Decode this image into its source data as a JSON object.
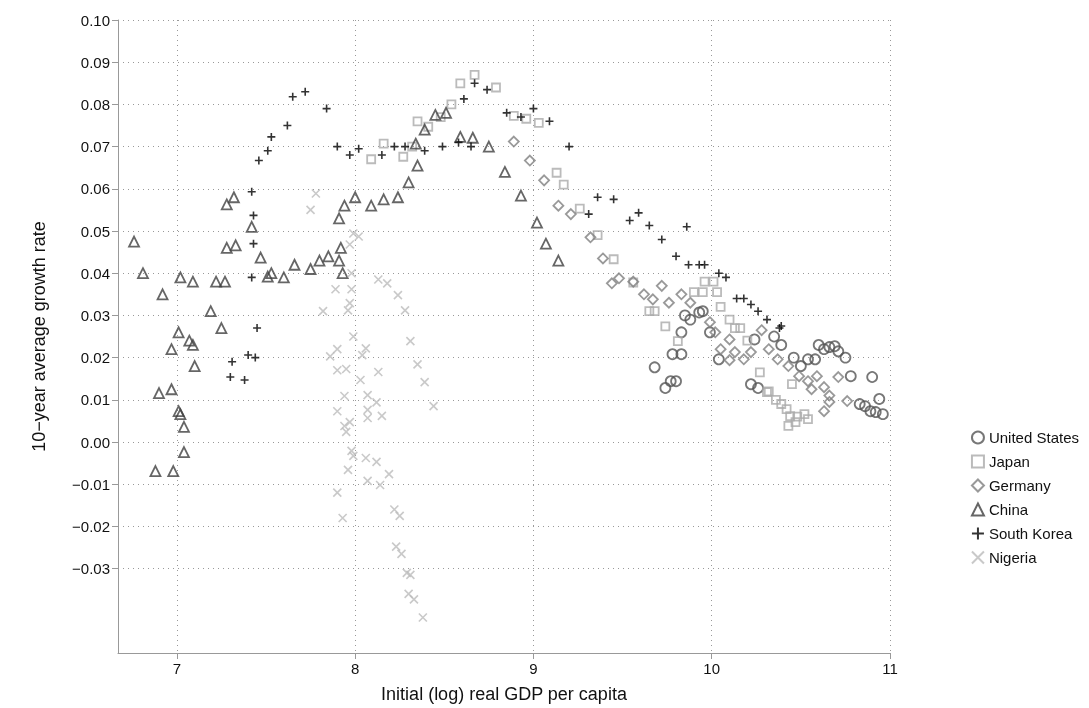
{
  "chart_data": {
    "type": "scatter",
    "xlabel": "Initial (log) real GDP per capita",
    "ylabel": "10−year average growth rate",
    "xlim": [
      6.67,
      11
    ],
    "xticks": [
      7,
      8,
      9,
      10,
      11
    ],
    "ylim": [
      -0.05,
      0.1
    ],
    "yticks": [
      {
        "value": -0.03,
        "label": "−0.03"
      },
      {
        "value": -0.02,
        "label": "−0.02"
      },
      {
        "value": -0.01,
        "label": "−0.01"
      },
      {
        "value": 0,
        "label": "0.00"
      },
      {
        "value": 0.01,
        "label": "0.01"
      },
      {
        "value": 0.02,
        "label": "0.02"
      },
      {
        "value": 0.03,
        "label": "0.03"
      },
      {
        "value": 0.04,
        "label": "0.04"
      },
      {
        "value": 0.05,
        "label": "0.05"
      },
      {
        "value": 0.06,
        "label": "0.06"
      },
      {
        "value": 0.07,
        "label": "0.07"
      },
      {
        "value": 0.08,
        "label": "0.08"
      },
      {
        "value": 0.09,
        "label": "0.09"
      },
      {
        "value": 0.1,
        "label": "0.10"
      }
    ],
    "grid": true,
    "legend": "right",
    "series": [
      {
        "name": "United States",
        "color": "#555555",
        "marker": "circle",
        "x": [
          9.68,
          9.74,
          9.77,
          9.8,
          9.78,
          9.83,
          9.83,
          9.85,
          9.88,
          9.93,
          9.95,
          9.99,
          10.04,
          10.22,
          10.26,
          10.24,
          10.35,
          10.39,
          10.46,
          10.5,
          10.54,
          10.58,
          10.6,
          10.63,
          10.66,
          10.69,
          10.71,
          10.75,
          10.78,
          10.83,
          10.86,
          10.9,
          10.94,
          10.92,
          10.96,
          10.89
        ],
        "values": [
          0.0177,
          0.0128,
          0.0144,
          0.0144,
          0.0208,
          0.0208,
          0.026,
          0.03,
          0.029,
          0.0307,
          0.031,
          0.026,
          0.0196,
          0.0137,
          0.0128,
          0.0243,
          0.025,
          0.023,
          0.02,
          0.018,
          0.0196,
          0.0196,
          0.023,
          0.022,
          0.0225,
          0.0227,
          0.0215,
          0.02,
          0.0156,
          0.009,
          0.0085,
          0.0154,
          0.0102,
          0.0071,
          0.0066,
          0.0073
        ]
      },
      {
        "name": "Japan",
        "color": "#aaaaaa",
        "marker": "square",
        "x": [
          8.09,
          8.16,
          8.27,
          8.32,
          8.35,
          8.41,
          8.48,
          8.54,
          8.59,
          8.67,
          8.79,
          8.89,
          8.96,
          9.03,
          9.13,
          9.17,
          9.26,
          9.36,
          9.45,
          9.56,
          9.65,
          9.68,
          9.74,
          9.81,
          9.9,
          9.95,
          9.96,
          10.01,
          10.03,
          10.05,
          10.1,
          10.13,
          10.16,
          10.2,
          10.27,
          10.31,
          10.32,
          10.36,
          10.39,
          10.42,
          10.44,
          10.48,
          10.52,
          10.54,
          10.43,
          10.45,
          10.47
        ],
        "values": [
          0.067,
          0.0707,
          0.0676,
          0.07,
          0.076,
          0.0747,
          0.077,
          0.08,
          0.085,
          0.087,
          0.084,
          0.0773,
          0.0766,
          0.0756,
          0.0638,
          0.061,
          0.0553,
          0.049,
          0.0433,
          0.0378,
          0.031,
          0.031,
          0.0274,
          0.0239,
          0.0355,
          0.0355,
          0.038,
          0.038,
          0.0355,
          0.032,
          0.029,
          0.027,
          0.027,
          0.024,
          0.0165,
          0.0118,
          0.012,
          0.01,
          0.009,
          0.0078,
          0.0061,
          0.006,
          0.0066,
          0.0054,
          0.0038,
          0.0137,
          0.0047
        ]
      },
      {
        "name": "Germany",
        "color": "#808080",
        "marker": "diamond",
        "x": [
          8.89,
          8.98,
          9.06,
          9.14,
          9.21,
          9.32,
          9.39,
          9.44,
          9.48,
          9.56,
          9.62,
          9.67,
          9.72,
          9.76,
          9.83,
          9.88,
          9.99,
          10.02,
          10.05,
          10.1,
          10.1,
          10.28,
          10.13,
          10.18,
          10.22,
          10.32,
          10.37,
          10.43,
          10.49,
          10.54,
          10.59,
          10.56,
          10.63,
          10.66,
          10.71,
          10.63,
          10.66,
          10.76
        ],
        "values": [
          0.0712,
          0.0667,
          0.062,
          0.056,
          0.054,
          0.0485,
          0.0435,
          0.0376,
          0.0388,
          0.038,
          0.035,
          0.0338,
          0.037,
          0.033,
          0.035,
          0.033,
          0.0284,
          0.026,
          0.022,
          0.0194,
          0.0243,
          0.0265,
          0.0213,
          0.0196,
          0.0213,
          0.022,
          0.0196,
          0.018,
          0.0156,
          0.0144,
          0.0156,
          0.0125,
          0.013,
          0.011,
          0.0154,
          0.0073,
          0.0095,
          0.0097
        ]
      },
      {
        "name": "China",
        "color": "#404040",
        "marker": "triangle",
        "x": [
          6.76,
          6.81,
          6.92,
          7.02,
          7.09,
          7.22,
          7.27,
          7.19,
          7.25,
          7.01,
          7.07,
          7.09,
          6.97,
          7.1,
          6.9,
          6.97,
          7.01,
          7.02,
          7.04,
          7.04,
          6.88,
          6.98,
          7.28,
          7.32,
          7.42,
          7.28,
          7.33,
          7.47,
          7.51,
          7.53,
          7.6,
          7.66,
          7.75,
          7.8,
          7.85,
          7.92,
          7.91,
          7.93,
          7.91,
          7.94,
          8,
          8.09,
          8.16,
          8.24,
          8.3,
          8.35,
          8.34,
          8.39,
          8.45,
          8.51,
          8.59,
          8.66,
          8.75,
          8.84,
          8.93,
          9.02,
          9.07,
          9.14
        ],
        "values": [
          0.0475,
          0.04,
          0.035,
          0.039,
          0.038,
          0.038,
          0.038,
          0.031,
          0.027,
          0.026,
          0.024,
          0.023,
          0.022,
          0.018,
          0.0116,
          0.0125,
          0.0073,
          0.0066,
          0.0036,
          -0.0024,
          -0.0069,
          -0.0069,
          0.0563,
          0.058,
          0.051,
          0.046,
          0.0466,
          0.0437,
          0.0392,
          0.04,
          0.039,
          0.042,
          0.041,
          0.043,
          0.044,
          0.046,
          0.043,
          0.04,
          0.053,
          0.056,
          0.058,
          0.056,
          0.0575,
          0.058,
          0.0615,
          0.0655,
          0.0707,
          0.074,
          0.0775,
          0.078,
          0.0723,
          0.0721,
          0.07,
          0.064,
          0.0584,
          0.052,
          0.047,
          0.043
        ]
      },
      {
        "name": "South Korea",
        "color": "#000000",
        "marker": "plus",
        "x": [
          7.3,
          7.31,
          7.38,
          7.4,
          7.44,
          7.45,
          7.42,
          7.43,
          7.42,
          7.43,
          7.46,
          7.51,
          7.53,
          7.62,
          7.65,
          7.72,
          7.84,
          7.9,
          7.97,
          8.02,
          8.15,
          8.22,
          8.28,
          8.39,
          8.49,
          8.58,
          8.65,
          8.61,
          8.67,
          8.74,
          8.85,
          8.93,
          9,
          9.09,
          9.2,
          9.31,
          9.36,
          9.45,
          9.54,
          9.59,
          9.65,
          9.72,
          9.8,
          9.86,
          9.87,
          9.93,
          9.96,
          10.04,
          10.08,
          10.14,
          10.18,
          10.22,
          10.26,
          10.31,
          10.38,
          10.39
        ],
        "values": [
          0.0154,
          0.019,
          0.0147,
          0.0206,
          0.02,
          0.027,
          0.039,
          0.047,
          0.0593,
          0.0537,
          0.0667,
          0.069,
          0.0723,
          0.075,
          0.0818,
          0.083,
          0.079,
          0.07,
          0.068,
          0.0695,
          0.068,
          0.07,
          0.07,
          0.069,
          0.07,
          0.071,
          0.07,
          0.0813,
          0.085,
          0.0835,
          0.078,
          0.077,
          0.079,
          0.076,
          0.07,
          0.054,
          0.058,
          0.0575,
          0.0525,
          0.0543,
          0.0513,
          0.048,
          0.044,
          0.051,
          0.042,
          0.042,
          0.042,
          0.04,
          0.039,
          0.034,
          0.034,
          0.0326,
          0.031,
          0.029,
          0.027,
          0.0275
        ]
      },
      {
        "name": "Nigeria",
        "color": "#bbbbbb",
        "marker": "cross",
        "x": [
          7.78,
          7.75,
          7.99,
          8.02,
          7.97,
          7.98,
          7.89,
          7.98,
          7.97,
          7.96,
          7.82,
          8.13,
          8.18,
          8.24,
          8.28,
          7.99,
          8.31,
          7.9,
          7.86,
          8.06,
          8.04,
          7.9,
          7.95,
          8.13,
          8.35,
          8.03,
          8.39,
          7.94,
          8.07,
          8.12,
          7.9,
          8.07,
          8.07,
          8.15,
          8.44,
          7.94,
          7.97,
          7.95,
          7.98,
          7.99,
          8.06,
          8.12,
          7.96,
          8.19,
          8.07,
          8.14,
          7.9,
          8.22,
          8.25,
          7.93,
          8.23,
          8.26,
          8.29,
          8.31,
          8.3,
          8.33,
          8.38
        ],
        "values": [
          0.0589,
          0.055,
          0.0494,
          0.0487,
          0.0468,
          0.04,
          0.0362,
          0.0362,
          0.0329,
          0.0312,
          0.031,
          0.0385,
          0.0376,
          0.0348,
          0.0312,
          0.025,
          0.0239,
          0.022,
          0.0203,
          0.0222,
          0.0206,
          0.017,
          0.0173,
          0.0166,
          0.0184,
          0.0147,
          0.0142,
          0.0109,
          0.0111,
          0.0094,
          0.0073,
          0.0076,
          0.0057,
          0.0062,
          0.0085,
          0.0038,
          0.0047,
          0.0024,
          -0.0021,
          -0.0033,
          -0.0038,
          -0.0047,
          -0.0066,
          -0.0076,
          -0.0092,
          -0.0102,
          -0.012,
          -0.016,
          -0.0175,
          -0.018,
          -0.0248,
          -0.0265,
          -0.031,
          -0.0315,
          -0.036,
          -0.0373,
          -0.0416
        ]
      }
    ]
  }
}
